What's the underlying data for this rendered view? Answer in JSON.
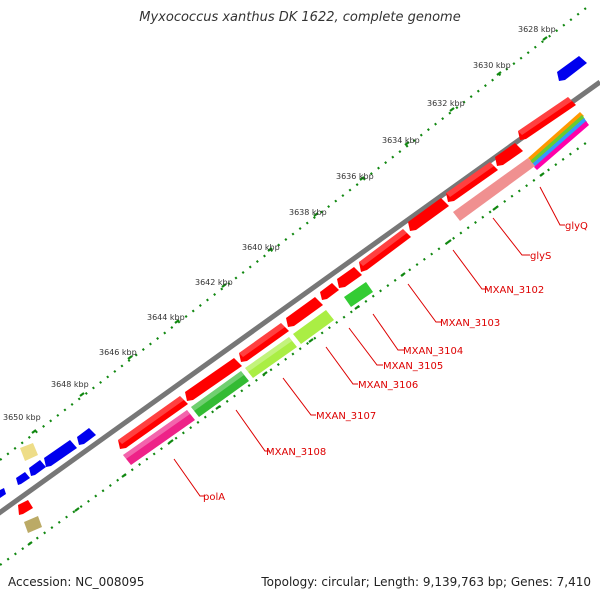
{
  "title": "Myxococcus xanthus DK 1622, complete genome",
  "footer": {
    "accession": "Accession: NC_008095",
    "summary": "Topology: circular; Length: 9,139,763 bp; Genes: 7,410"
  },
  "ticks": [
    "3628 kbp",
    "3630 kbp",
    "3632 kbp",
    "3634 kbp",
    "3636 kbp",
    "3638 kbp",
    "3640 kbp",
    "3642 kbp",
    "3644 kbp",
    "3646 kbp",
    "3648 kbp",
    "3650 kbp"
  ],
  "gene_labels": [
    "glyQ",
    "glyS",
    "MXAN_3102",
    "MXAN_3103",
    "MXAN_3104",
    "MXAN_3105",
    "MXAN_3106",
    "MXAN_3107",
    "MXAN_3108",
    "polA"
  ],
  "colors": {
    "red_gene": "#ff0000",
    "blue_gene": "#0000ee",
    "backbone": "#777777",
    "tick_dots": "#118811",
    "label_red": "#dd0000"
  }
}
